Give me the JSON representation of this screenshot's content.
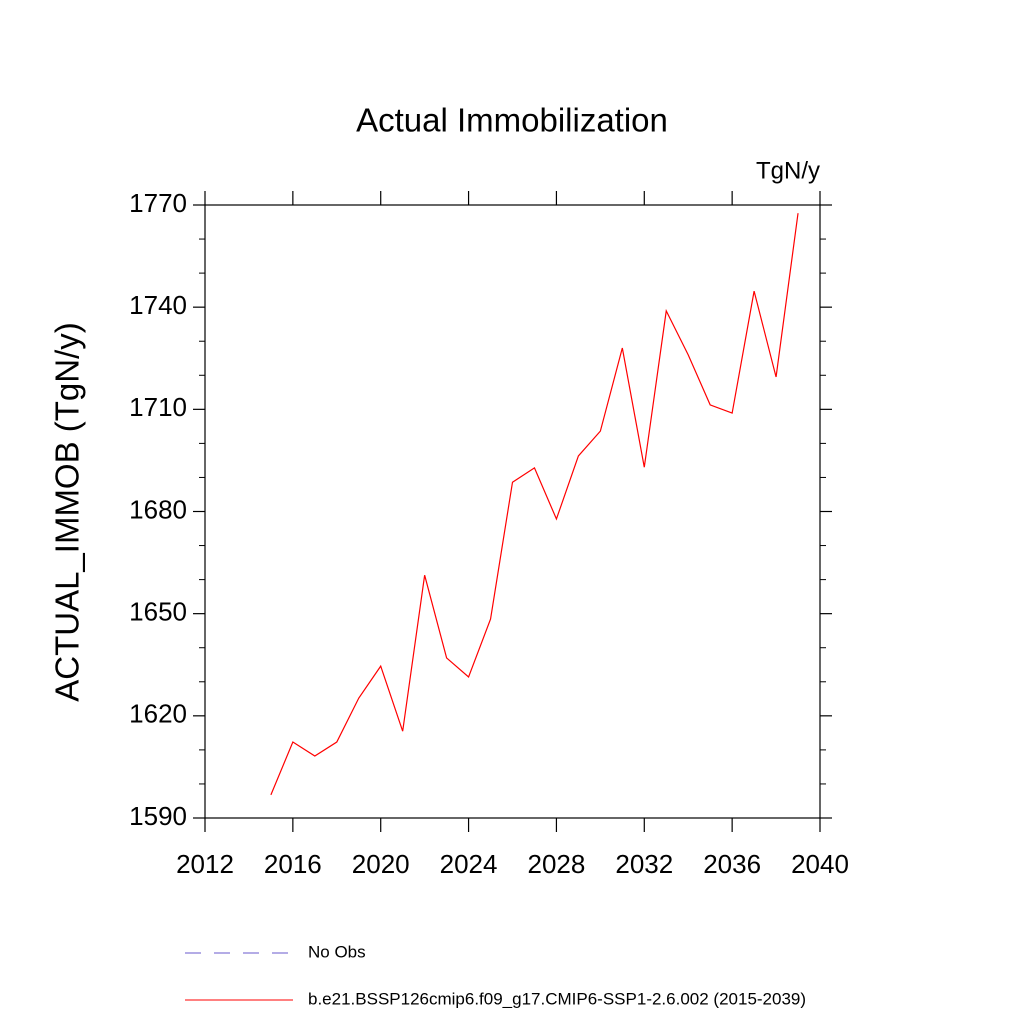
{
  "chart_data": {
    "type": "line",
    "title": "Actual Immobilization",
    "units": "TgN/y",
    "y_label": "ACTUAL_IMMOB  (TgN/y)",
    "x": [
      2015,
      2016,
      2017,
      2018,
      2019,
      2020,
      2021,
      2022,
      2023,
      2024,
      2025,
      2026,
      2027,
      2028,
      2029,
      2030,
      2031,
      2032,
      2033,
      2034,
      2035,
      2036,
      2037,
      2038,
      2039
    ],
    "series": [
      {
        "name": "No Obs",
        "color": "#6a5acd",
        "dashed": true,
        "values": [
          null,
          null,
          null,
          null,
          null,
          null,
          null,
          null,
          null,
          null,
          null,
          null,
          null,
          null,
          null,
          null,
          null,
          null,
          null,
          null,
          null,
          null,
          null,
          null,
          null
        ]
      },
      {
        "name": "b.e21.BSSP126cmip6.f09_g17.CMIP6-SSP1-2.6.002 (2015-2039)",
        "color": "#ff0000",
        "dashed": false,
        "values": [
          1596.8,
          1612.3,
          1608.2,
          1612.3,
          1625.2,
          1634.6,
          1615.5,
          1661.3,
          1637,
          1631.4,
          1648.4,
          1688.6,
          1692.8,
          1677.8,
          1696.3,
          1703.6,
          1728,
          1693,
          1738.9,
          1726,
          1711.3,
          1708.9,
          1744.7,
          1719.5,
          1767.6
        ]
      }
    ],
    "xlim": [
      2012,
      2040
    ],
    "xticks": [
      2012,
      2016,
      2020,
      2024,
      2028,
      2032,
      2036,
      2040
    ],
    "ylim": [
      1590,
      1770
    ],
    "yticks": [
      1590,
      1620,
      1650,
      1680,
      1710,
      1740,
      1770
    ],
    "grid": false
  }
}
